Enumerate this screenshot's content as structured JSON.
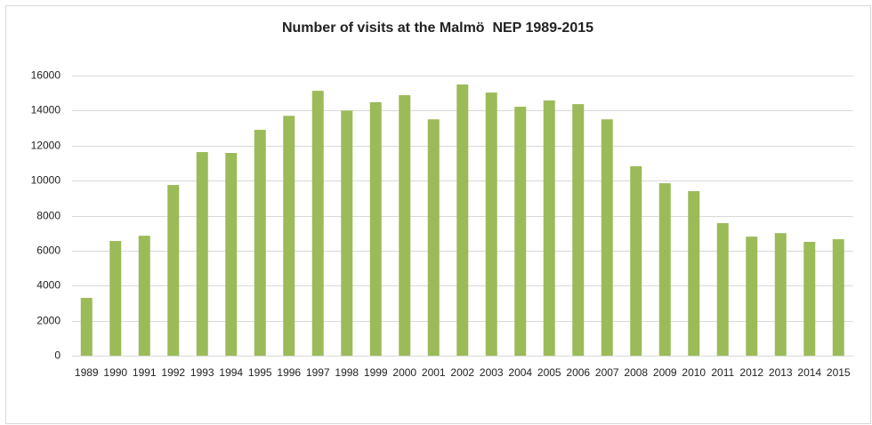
{
  "chart_data": {
    "type": "bar",
    "title": "Number of visits at the Malmö  NEP 1989-2015",
    "categories": [
      "1989",
      "1990",
      "1991",
      "1992",
      "1993",
      "1994",
      "1995",
      "1996",
      "1997",
      "1998",
      "1999",
      "2000",
      "2001",
      "2002",
      "2003",
      "2004",
      "2005",
      "2006",
      "2007",
      "2008",
      "2009",
      "2010",
      "2011",
      "2012",
      "2013",
      "2014",
      "2015"
    ],
    "values": [
      3300,
      6550,
      6850,
      9750,
      11630,
      11580,
      12900,
      13700,
      15130,
      14000,
      14480,
      14880,
      13500,
      15490,
      15030,
      14220,
      14580,
      14370,
      13500,
      10820,
      9850,
      9400,
      7570,
      6800,
      7000,
      6500,
      6650
    ],
    "color": "#9bbb59",
    "ylim": [
      0,
      16000
    ],
    "yticks": [
      0,
      2000,
      4000,
      6000,
      8000,
      10000,
      12000,
      14000,
      16000
    ],
    "grid": true
  }
}
